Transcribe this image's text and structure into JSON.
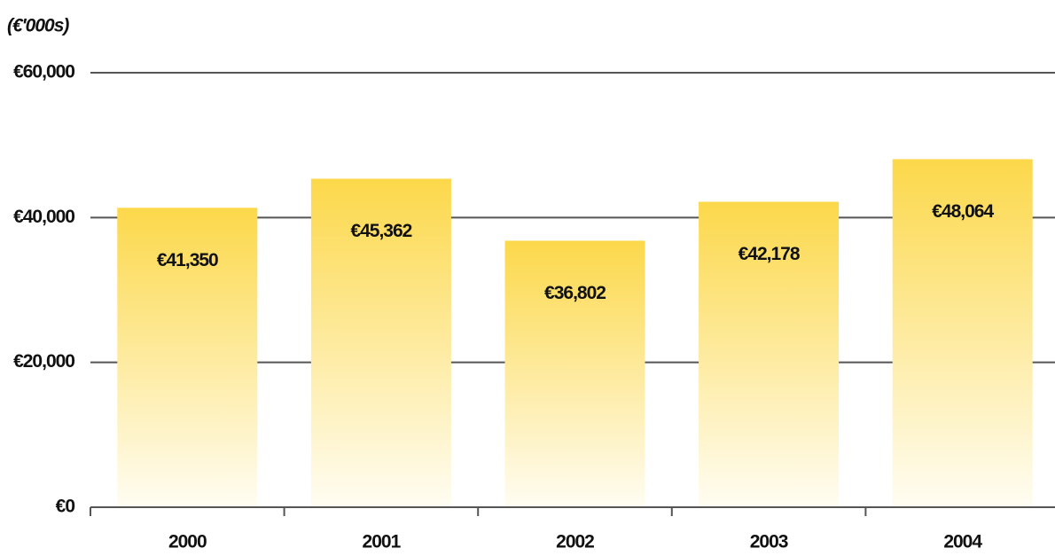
{
  "chart_data": {
    "type": "bar",
    "title": "(€'000s)",
    "categories": [
      "2000",
      "2001",
      "2002",
      "2003",
      "2004"
    ],
    "values": [
      41350,
      45362,
      36802,
      42178,
      48064
    ],
    "value_labels": [
      "€41,350",
      "€45,362",
      "€36,802",
      "€42,178",
      "€48,064"
    ],
    "color": "#fcd84a",
    "ylim": [
      0,
      60000
    ],
    "yticks": [
      {
        "value": 0,
        "label": "€0"
      },
      {
        "value": 20000,
        "label": "€20,000"
      },
      {
        "value": 40000,
        "label": "€40,000"
      },
      {
        "value": 60000,
        "label": "€60,000"
      }
    ],
    "grid": true
  }
}
